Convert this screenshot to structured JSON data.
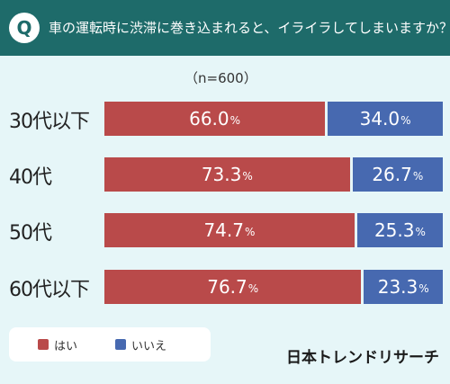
{
  "header": {
    "badge": "Q",
    "question": "車の運転時に渋滞に巻き込まれると、イライラしてしまいますか？"
  },
  "note": "（n=600）",
  "legend": {
    "items": [
      {
        "label": "はい",
        "color": "#b94a4a"
      },
      {
        "label": "いいえ",
        "color": "#4769b0"
      }
    ]
  },
  "brand": "日本トレンドリサーチ",
  "chart_data": {
    "type": "bar",
    "orientation": "horizontal",
    "stacked": true,
    "categories": [
      "30代以下",
      "40代",
      "50代",
      "60代以下"
    ],
    "series": [
      {
        "name": "はい",
        "values": [
          66.0,
          73.3,
          74.7,
          76.7
        ],
        "labels": [
          "66.0",
          "73.3",
          "74.7",
          "76.7"
        ],
        "color": "#b94a4a"
      },
      {
        "name": "いいえ",
        "values": [
          34.0,
          26.7,
          25.3,
          23.3
        ],
        "labels": [
          "34.0",
          "26.7",
          "25.3",
          "23.3"
        ],
        "color": "#4769b0"
      }
    ],
    "unit": "%",
    "xlim": [
      0,
      100
    ],
    "legend_position": "bottom-left"
  }
}
